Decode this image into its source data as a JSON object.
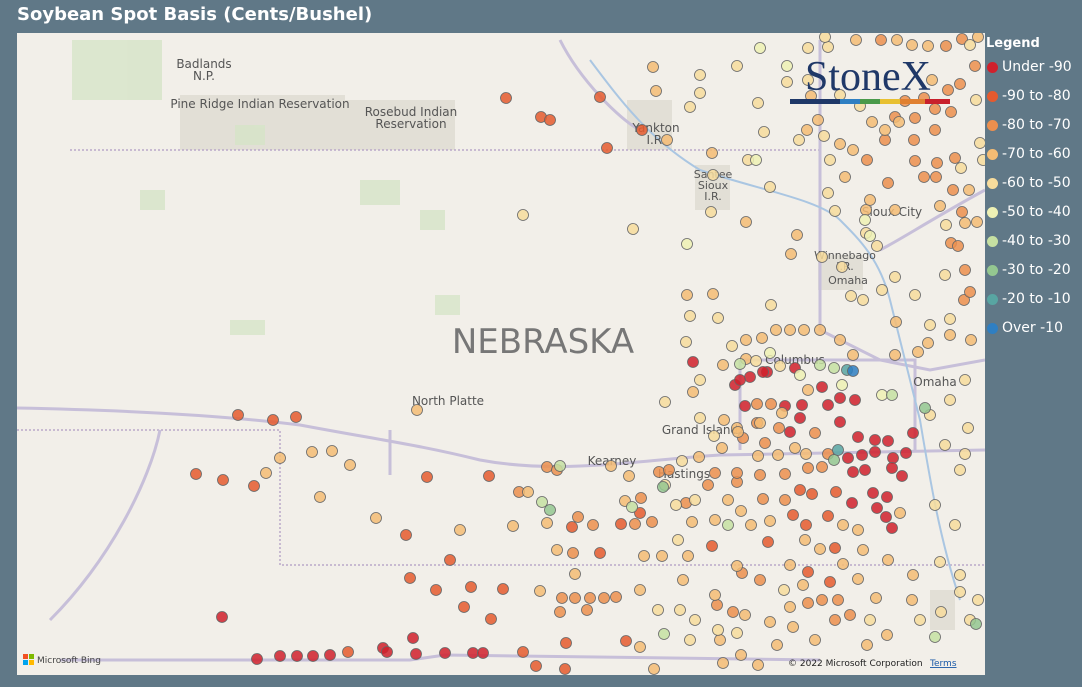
{
  "header": {
    "title": "Soybean Spot Basis (Cents/Bushel)"
  },
  "map": {
    "labels": [
      {
        "lines": [
          "Badlands",
          "N.P."
        ]
      },
      {
        "lines": [
          "Pine Ridge Indian Reservation"
        ]
      },
      {
        "lines": [
          "Rosebud Indian",
          "Reservation"
        ]
      },
      {
        "lines": [
          "Yankton",
          "I.R."
        ]
      },
      {
        "lines": [
          "Santee",
          "Sioux",
          "I.R."
        ]
      },
      {
        "lines": [
          "Sioux City"
        ]
      },
      {
        "lines": [
          "Winnebago",
          "I.R."
        ]
      },
      {
        "lines": [
          "Omaha"
        ]
      },
      {
        "lines": [
          "NEBRASKA"
        ]
      },
      {
        "lines": [
          "North Platte"
        ]
      },
      {
        "lines": [
          "Columbus"
        ]
      },
      {
        "lines": [
          "Omaha"
        ]
      },
      {
        "lines": [
          "Grand Island"
        ]
      },
      {
        "lines": [
          "Kearney"
        ]
      },
      {
        "lines": [
          "Hastings"
        ]
      }
    ],
    "logo": "StoneX",
    "bing": "Microsoft Bing",
    "copyright": "© 2022 Microsoft Corporation",
    "terms": "Terms"
  },
  "legend": {
    "title": "Legend",
    "items": [
      {
        "label": "Under -90",
        "color": "#d0202c"
      },
      {
        "label": "-90 to -80",
        "color": "#e55a2e"
      },
      {
        "label": "-80 to -70",
        "color": "#ec8f4e"
      },
      {
        "label": "-70 to -60",
        "color": "#f4bc74"
      },
      {
        "label": "-60 to -50",
        "color": "#f7dc9c"
      },
      {
        "label": "-50 to -40",
        "color": "#eef1b4"
      },
      {
        "label": "-40 to -30",
        "color": "#c6e0a2"
      },
      {
        "label": "-30 to -20",
        "color": "#94c790"
      },
      {
        "label": "-20 to -10",
        "color": "#58a5a2"
      },
      {
        "label": "Over -10",
        "color": "#2f7fc2"
      }
    ]
  }
}
